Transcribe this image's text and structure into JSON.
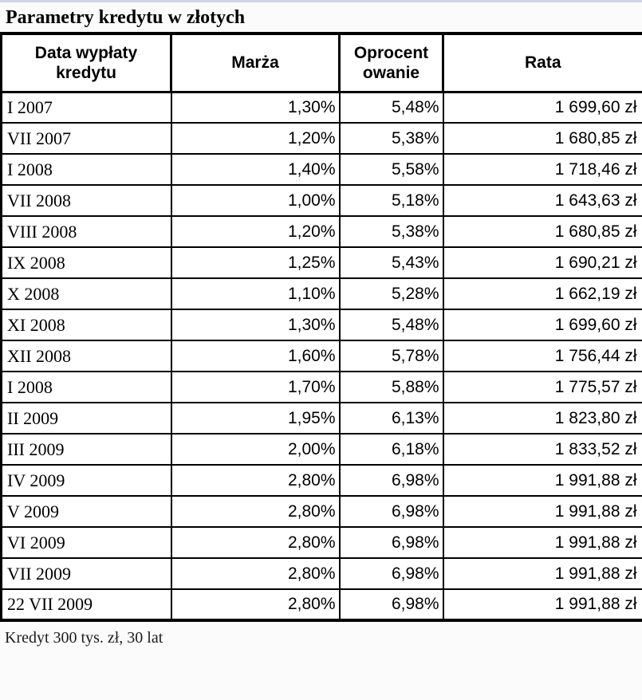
{
  "chart_data": {
    "type": "table",
    "title": "Parametry kredytu w złotych",
    "headers": [
      {
        "label": "Data wypłaty kredytu",
        "lines": [
          "Data wypłaty",
          "kredytu"
        ]
      },
      {
        "label": "Marża",
        "lines": [
          "Marża"
        ]
      },
      {
        "label": "Oprocentowanie",
        "lines": [
          "Oprocent",
          "owanie"
        ]
      },
      {
        "label": "Rata",
        "lines": [
          "Rata"
        ]
      }
    ],
    "rows": [
      [
        "I 2007",
        "1,30%",
        "5,48%",
        "1 699,60 zł"
      ],
      [
        "VII 2007",
        "1,20%",
        "5,38%",
        "1 680,85 zł"
      ],
      [
        "I 2008",
        "1,40%",
        "5,58%",
        "1 718,46 zł"
      ],
      [
        "VII 2008",
        "1,00%",
        "5,18%",
        "1 643,63 zł"
      ],
      [
        "VIII 2008",
        "1,20%",
        "5,38%",
        "1 680,85 zł"
      ],
      [
        "IX 2008",
        "1,25%",
        "5,43%",
        "1 690,21 zł"
      ],
      [
        "X 2008",
        "1,10%",
        "5,28%",
        "1 662,19 zł"
      ],
      [
        "XI 2008",
        "1,30%",
        "5,48%",
        "1 699,60 zł"
      ],
      [
        "XII 2008",
        "1,60%",
        "5,78%",
        "1 756,44 zł"
      ],
      [
        "I 2008",
        "1,70%",
        "5,88%",
        "1 775,57 zł"
      ],
      [
        "II 2009",
        "1,95%",
        "6,13%",
        "1 823,80 zł"
      ],
      [
        "III 2009",
        "2,00%",
        "6,18%",
        "1 833,52 zł"
      ],
      [
        "IV 2009",
        "2,80%",
        "6,98%",
        "1 991,88 zł"
      ],
      [
        "V 2009",
        "2,80%",
        "6,98%",
        "1 991,88 zł"
      ],
      [
        "VI 2009",
        "2,80%",
        "6,98%",
        "1 991,88 zł"
      ],
      [
        "VII 2009",
        "2,80%",
        "6,98%",
        "1 991,88 zł"
      ],
      [
        "22 VII 2009",
        "2,80%",
        "6,98%",
        "1 991,88 zł"
      ]
    ],
    "footnote": "Kredyt 300 tys. zł, 30 lat",
    "layout_hints": {
      "currency_suffix": "zł",
      "decimal_separator": ",",
      "thousands_separator": " "
    }
  },
  "colors": {
    "border": "#000000",
    "text": "#000000",
    "cell_background": "#ffffff",
    "top_strip": "#cfd4e6"
  }
}
